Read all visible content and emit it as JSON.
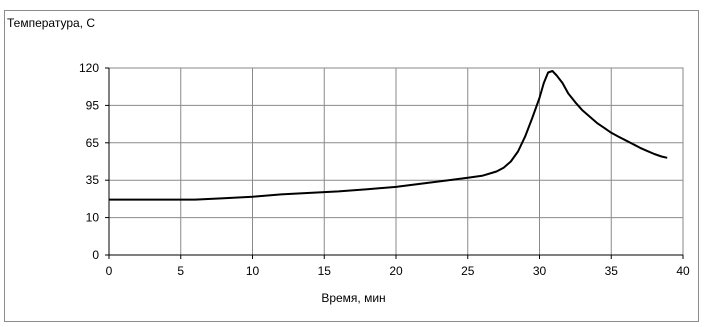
{
  "chart_data": {
    "type": "line",
    "ylabel": "Температура, С",
    "xlabel": "Время, мин",
    "xlim": [
      0,
      40
    ],
    "ylim": [
      0,
      120
    ],
    "x_ticks": [
      0,
      5,
      10,
      15,
      20,
      25,
      30,
      35,
      40
    ],
    "y_ticks": [
      0,
      10,
      35,
      65,
      95,
      120
    ],
    "grid": true,
    "series": [
      {
        "x": [
          0,
          2,
          4,
          6,
          8,
          10,
          12,
          14,
          16,
          18,
          20,
          22,
          24,
          25,
          26,
          27,
          27.5,
          28,
          28.5,
          29,
          29.5,
          30,
          30.3,
          30.6,
          30.9,
          31.2,
          31.6,
          32,
          32.5,
          33,
          33.5,
          34,
          34.5,
          35,
          35.5,
          36,
          36.5,
          37,
          37.5,
          38,
          38.5,
          38.9
        ],
        "y": [
          22,
          22,
          22,
          22,
          23,
          24,
          25.5,
          26.5,
          27.5,
          29,
          30.5,
          33,
          35.5,
          37,
          38.5,
          42,
          45,
          50,
          58,
          70,
          85,
          100,
          110,
          117,
          118,
          115,
          110,
          103,
          97,
          91,
          86,
          81,
          77,
          73,
          70,
          67,
          64,
          61,
          58.5,
          56,
          54,
          53
        ]
      }
    ]
  }
}
